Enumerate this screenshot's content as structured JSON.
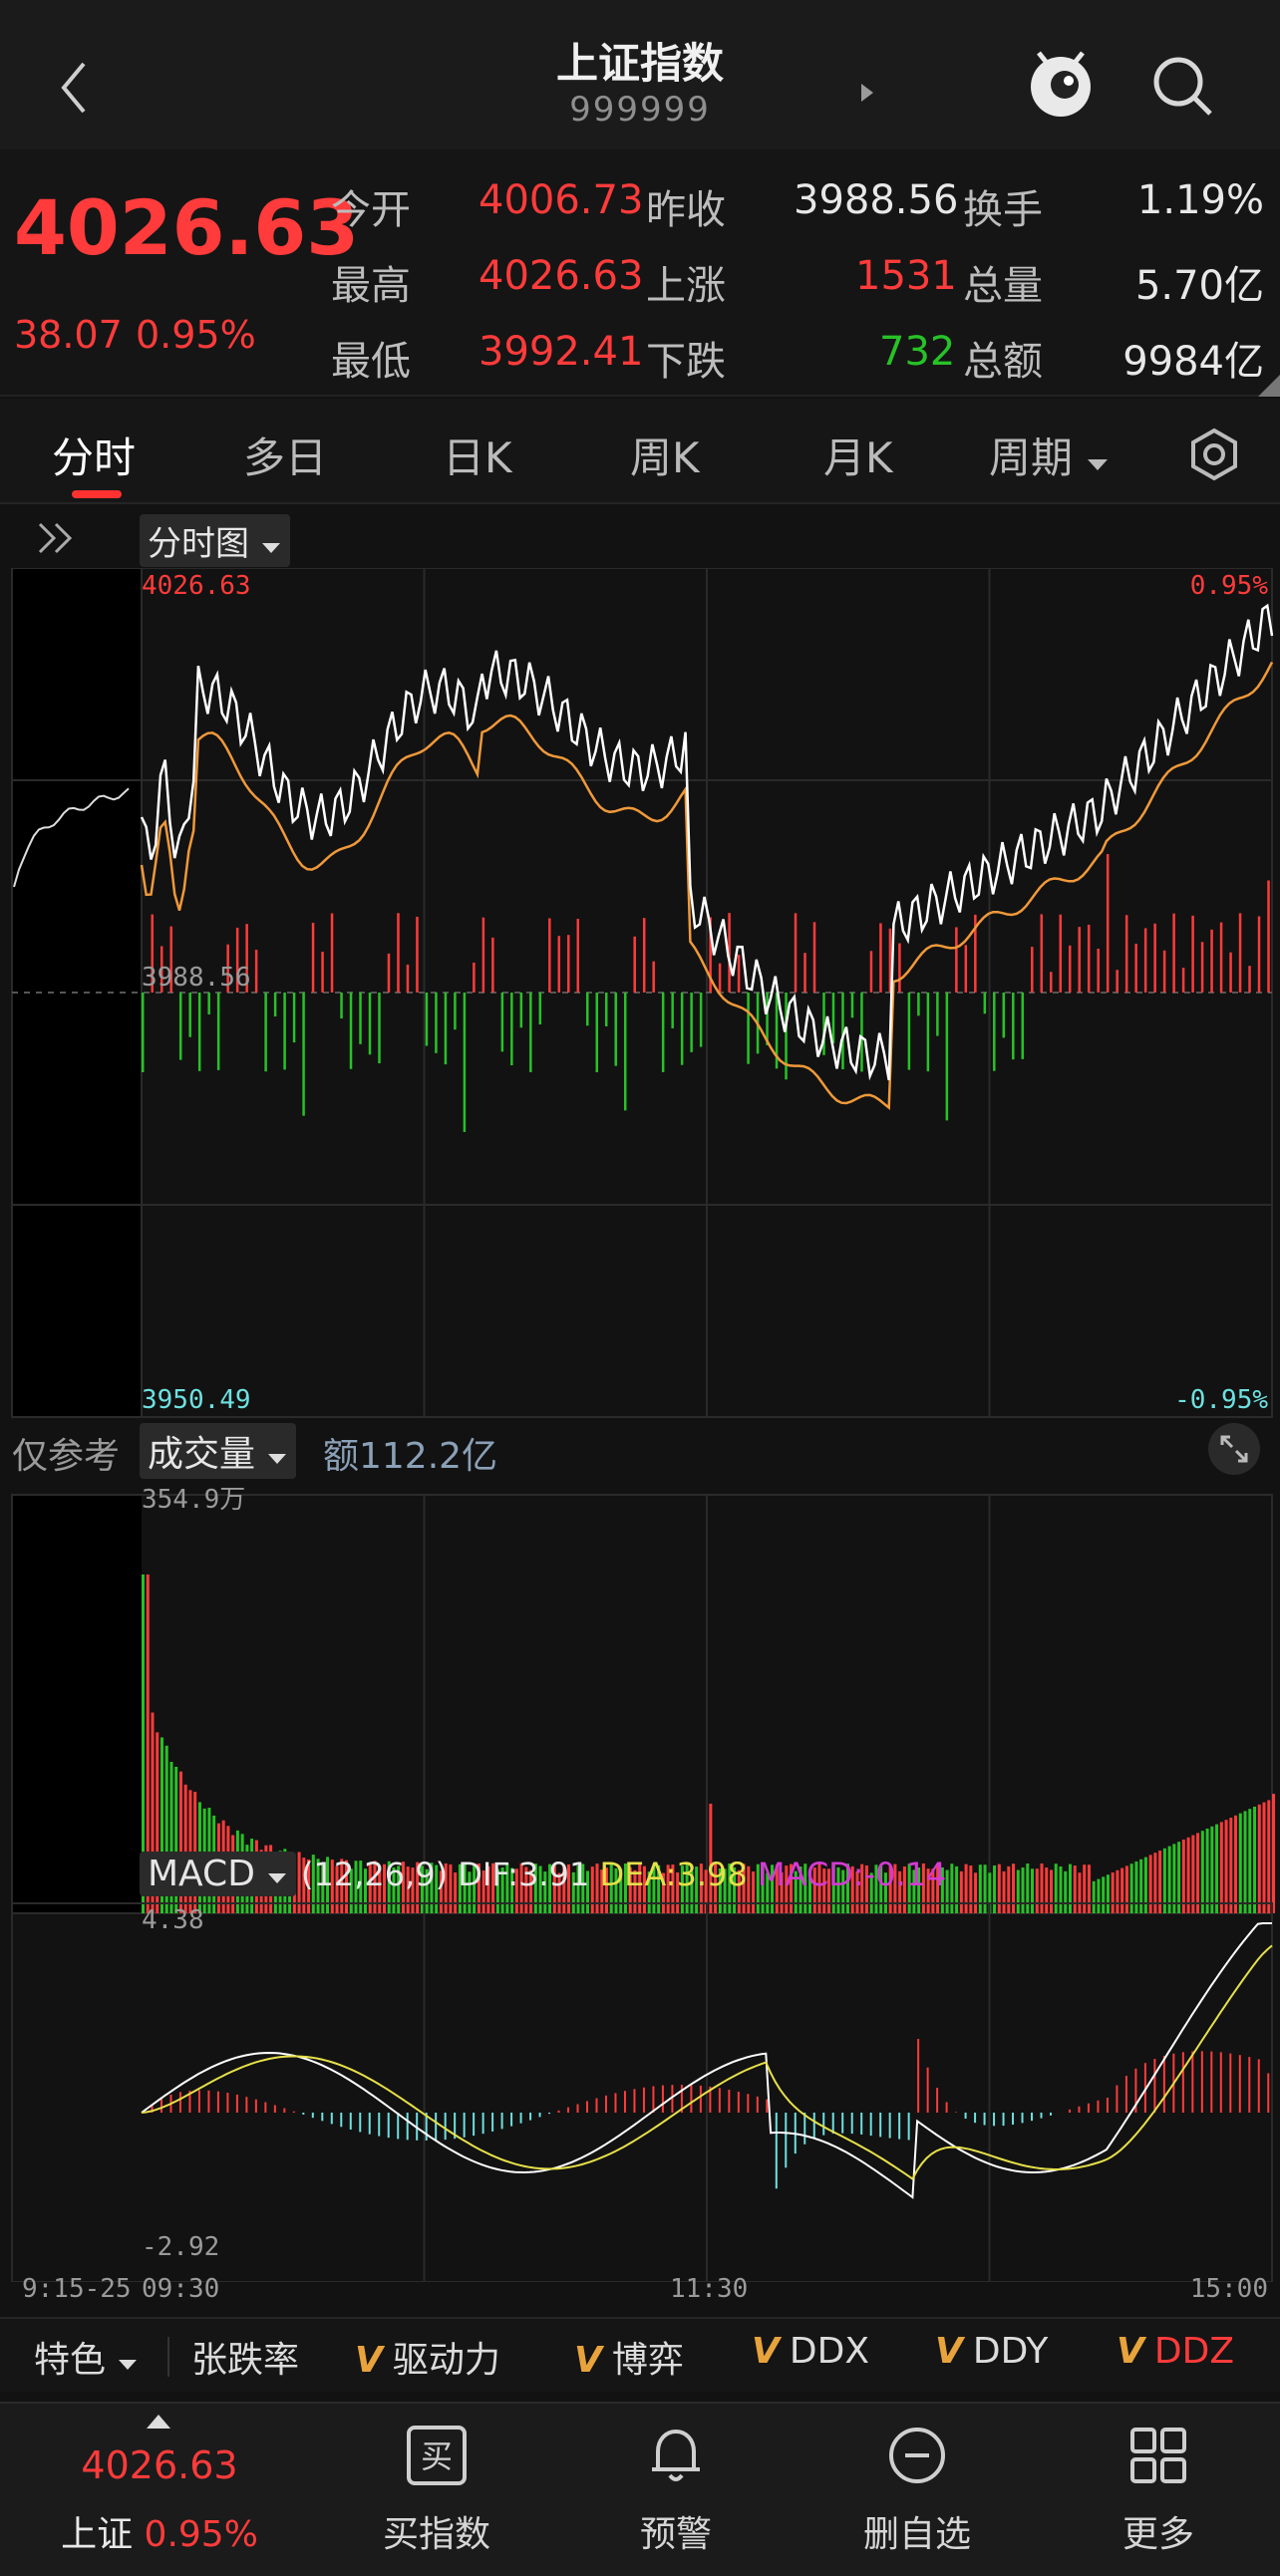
{
  "header": {
    "title": "上证指数",
    "code": "999999",
    "back_icon": "chevron-left-icon",
    "mascot_icon": "mascot-icon",
    "search_icon": "search-icon"
  },
  "quote": {
    "price": "4026.63",
    "change": "38.07",
    "change_pct": "0.95%",
    "rows": [
      {
        "l1": "今开",
        "v1": "4006.73",
        "l2": "昨收",
        "v2": "3988.56",
        "l3": "换手",
        "v3": "1.19%"
      },
      {
        "l1": "最高",
        "v1": "4026.63",
        "l2": "上涨",
        "v2": "1531",
        "l3": "总量",
        "v3": "5.70亿"
      },
      {
        "l1": "最低",
        "v1": "3992.41",
        "l2": "下跌",
        "v2": "732",
        "l3": "总额",
        "v3": "9984亿"
      }
    ]
  },
  "tabs": [
    "分时",
    "多日",
    "日K",
    "周K",
    "月K",
    "周期"
  ],
  "colors": {
    "up": "#ff3b3b",
    "down": "#27c227",
    "avg_line": "#f0993a",
    "price_line": "#ffffff",
    "dea": "#e6e04a",
    "macd_label": "#d43ad4"
  },
  "chart": {
    "type_label": "分时图",
    "top_price": "4026.63",
    "top_pct": "0.95%",
    "mid_price": "3988.56",
    "bottom_price": "3950.49",
    "bottom_pct": "-0.95%"
  },
  "volume": {
    "ref_label": "仅参考",
    "type_label": "成交量",
    "amount": "额112.2亿",
    "max_label": "354.9万"
  },
  "macd": {
    "type_label": "MACD",
    "params": "(12,26,9)",
    "dif": "DIF:3.91",
    "dea": "DEA:3.98",
    "macd": "MACD:-0.14",
    "top": "4.38",
    "bottom": "-2.92"
  },
  "time_axis": {
    "pre": "9:15-25",
    "open": "09:30",
    "mid": "11:30",
    "close": "15:00"
  },
  "indicators": {
    "feature": "特色",
    "items": [
      "张跌率",
      "驱动力",
      "博弈",
      "DDX",
      "DDY",
      "DDZ"
    ]
  },
  "bottom_nav": {
    "index_price": "4026.63",
    "index_name": "上证",
    "index_pct": "0.95%",
    "items": [
      "买指数",
      "预警",
      "删自选",
      "更多"
    ],
    "buy_glyph": "买"
  }
}
